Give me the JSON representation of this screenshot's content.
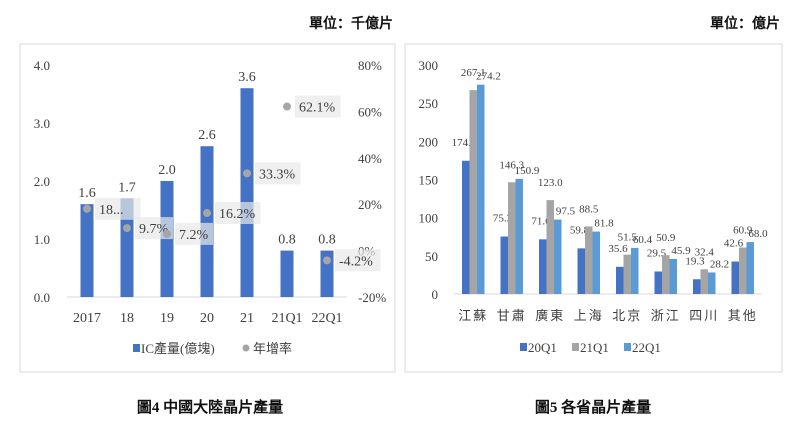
{
  "chart_data": [
    {
      "type": "bar+scatter",
      "unit": "單位：千億片",
      "caption": "圖4 中國大陸晶片產量",
      "categories": [
        "2017",
        "18",
        "19",
        "20",
        "21",
        "21Q1",
        "22Q1"
      ],
      "series": [
        {
          "name": "IC產量(億塊)",
          "type": "bar",
          "axis": "left",
          "values": [
            1.6,
            1.7,
            2.0,
            2.6,
            3.6,
            0.8,
            0.8
          ],
          "labels": [
            "1.6",
            "1.7",
            "2.0",
            "2.6",
            "3.6",
            "0.8",
            "0.8"
          ],
          "color": "#4472C4"
        },
        {
          "name": "年增率",
          "type": "scatter",
          "axis": "right",
          "values": [
            18,
            9.7,
            7.2,
            16.2,
            33.3,
            62.1,
            -4.2
          ],
          "labels": [
            "18...",
            "9.7%",
            "7.2%",
            "16.2%",
            "33.3%",
            "62.1%",
            "-4.2%"
          ],
          "color": "#A5A5A5"
        }
      ],
      "left_axis": {
        "ylim": [
          0,
          4
        ],
        "ticks": [
          "0.0",
          "1.0",
          "2.0",
          "3.0",
          "4.0"
        ]
      },
      "right_axis": {
        "ylim": [
          -20,
          80
        ],
        "ticks": [
          "-20%",
          "0%",
          "20%",
          "40%",
          "60%",
          "80%"
        ]
      },
      "legend": "bottom",
      "grid": false
    },
    {
      "type": "bar",
      "unit": "單位：億片",
      "caption": "圖5 各省晶片產量",
      "categories": [
        "江蘇",
        "甘肅",
        "廣東",
        "上海",
        "北京",
        "浙江",
        "四川",
        "其他"
      ],
      "series": [
        {
          "name": "20Q1",
          "values": [
            174.5,
            75.3,
            71.6,
            59.8,
            35.6,
            29.5,
            19.3,
            42.6
          ],
          "labels": [
            "174.5",
            "75.3",
            "71.6",
            "59.8",
            "35.6",
            "29.5",
            "19.3",
            "42.6"
          ],
          "color": "#4472C4"
        },
        {
          "name": "21Q1",
          "values": [
            267.1,
            146.3,
            123.0,
            88.5,
            51.5,
            50.9,
            32.4,
            60.9
          ],
          "labels": [
            "267.1",
            "146.3",
            "123.0",
            "88.5",
            "51.5",
            "50.9",
            "32.4",
            "60.9"
          ],
          "color": "#A5A5A5"
        },
        {
          "name": "22Q1",
          "values": [
            274.2,
            150.9,
            97.5,
            81.8,
            60.4,
            45.9,
            28.2,
            68.0
          ],
          "labels": [
            "274.2",
            "150.9",
            "97.5",
            "81.8",
            "60.4",
            "45.9",
            "28.2",
            "68.0"
          ],
          "color": "#5B9BD5"
        }
      ],
      "ylim": [
        0,
        300
      ],
      "ticks": [
        "0",
        "50",
        "100",
        "150",
        "200",
        "250",
        "300"
      ],
      "legend": "bottom",
      "grid": false
    }
  ]
}
